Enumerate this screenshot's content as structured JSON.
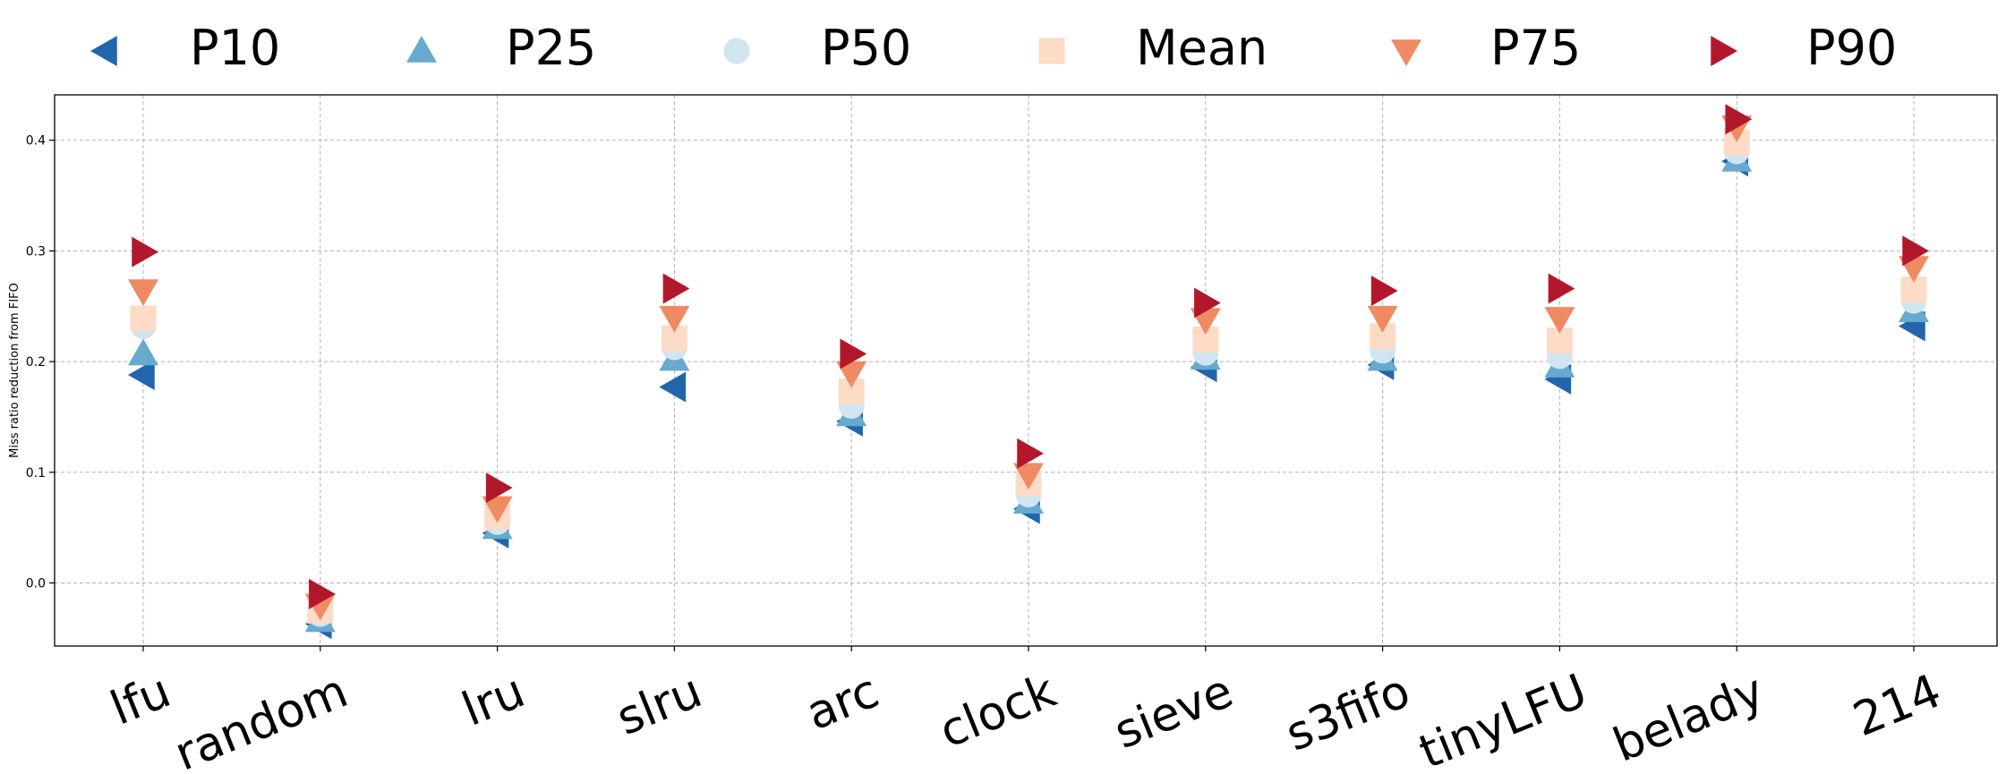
{
  "chart_data": {
    "type": "scatter",
    "title": "",
    "xlabel": "",
    "ylabel": "Miss ratio reduction from FIFO",
    "ylim": [
      -0.057,
      0.441
    ],
    "yticks": [
      0.0,
      0.1,
      0.2,
      0.3,
      0.4
    ],
    "ytick_labels": [
      "0.0",
      "0.1",
      "0.2",
      "0.3",
      "0.4"
    ],
    "grid": true,
    "legend_position": "top",
    "categories": [
      "lfu",
      "random",
      "lru",
      "slru",
      "arc",
      "clock",
      "sieve",
      "s3fifo",
      "tinyLFU",
      "belady",
      "214"
    ],
    "series": [
      {
        "name": "P10",
        "marker": "triangle-left",
        "color": "#2166ac",
        "values": [
          0.188,
          -0.037,
          0.045,
          0.177,
          0.146,
          0.067,
          0.195,
          0.197,
          0.184,
          0.381,
          0.232
        ]
      },
      {
        "name": "P25",
        "marker": "triangle-up",
        "color": "#67a9cf",
        "values": [
          0.207,
          -0.034,
          0.05,
          0.202,
          0.152,
          0.073,
          0.203,
          0.202,
          0.196,
          0.382,
          0.246
        ]
      },
      {
        "name": "P50",
        "marker": "circle",
        "color": "#d1e5f0",
        "values": [
          0.232,
          -0.028,
          0.055,
          0.213,
          0.16,
          0.08,
          0.208,
          0.21,
          0.205,
          0.39,
          0.255
        ]
      },
      {
        "name": "Mean",
        "marker": "square",
        "color": "#fddbc7",
        "values": [
          0.239,
          -0.025,
          0.06,
          0.221,
          0.173,
          0.09,
          0.22,
          0.223,
          0.219,
          0.398,
          0.265
        ]
      },
      {
        "name": "P75",
        "marker": "triangle-down",
        "color": "#ef8a62",
        "values": [
          0.264,
          -0.02,
          0.068,
          0.24,
          0.19,
          0.098,
          0.238,
          0.24,
          0.239,
          0.412,
          0.285
        ]
      },
      {
        "name": "P90",
        "marker": "triangle-right",
        "color": "#b2182b",
        "values": [
          0.299,
          -0.01,
          0.086,
          0.266,
          0.207,
          0.117,
          0.253,
          0.264,
          0.266,
          0.419,
          0.3
        ]
      }
    ]
  }
}
